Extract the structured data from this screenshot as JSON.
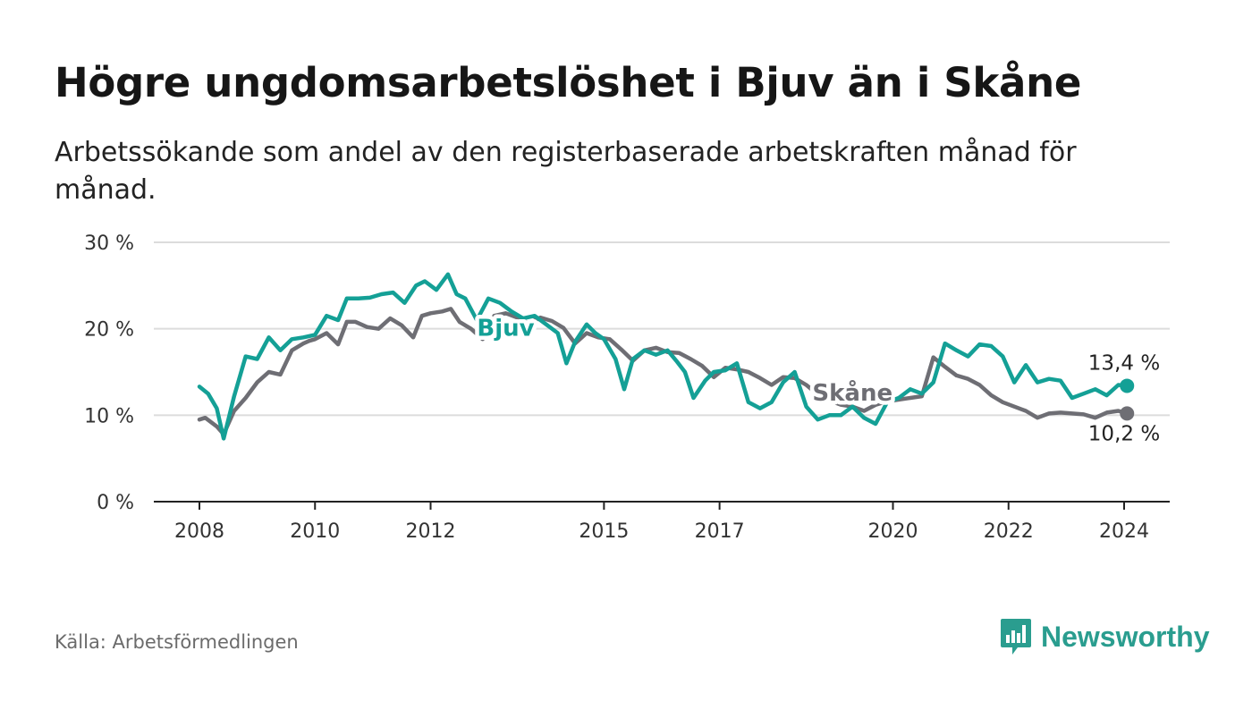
{
  "title": "Högre ungdomsarbetslöshet i Bjuv än i Skåne",
  "subtitle": "Arbetssökande som andel av den registerbaserade arbetskraften månad för månad.",
  "source": "Källa: Arbetsförmedlingen",
  "brand": {
    "name": "Newsworthy",
    "icon": "newsworthy-logo-icon"
  },
  "colors": {
    "bjuv": "#14a096",
    "skane": "#6e6e74",
    "grid": "#dcdcdc",
    "axis": "#222222"
  },
  "chart_data": {
    "type": "line",
    "title": "Högre ungdomsarbetslöshet i Bjuv än i Skåne",
    "xlabel": "",
    "ylabel": "",
    "ylim": [
      0,
      30
    ],
    "xlim": [
      2008.0,
      2024.0
    ],
    "yticks": [
      0,
      10,
      20,
      30
    ],
    "ytick_labels": [
      "0 %",
      "10 %",
      "20 %",
      "30 %"
    ],
    "xticks": [
      2008,
      2010,
      2012,
      2015,
      2017,
      2020,
      2022,
      2024
    ],
    "xtick_labels": [
      "2008",
      "2010",
      "2012",
      "2015",
      "2017",
      "2020",
      "2022",
      "2024"
    ],
    "series": [
      {
        "name": "Skåne",
        "label": "Skåne",
        "end_label": "10,2 %",
        "x": [
          2008.0,
          2008.1,
          2008.3,
          2008.42,
          2008.6,
          2008.8,
          2009.0,
          2009.2,
          2009.4,
          2009.6,
          2009.8,
          2009.9,
          2010.0,
          2010.2,
          2010.4,
          2010.55,
          2010.7,
          2010.9,
          2011.1,
          2011.3,
          2011.5,
          2011.7,
          2011.85,
          2012.0,
          2012.2,
          2012.35,
          2012.5,
          2012.7,
          2012.9,
          2013.1,
          2013.3,
          2013.5,
          2013.7,
          2013.9,
          2014.1,
          2014.3,
          2014.5,
          2014.7,
          2014.9,
          2015.1,
          2015.3,
          2015.5,
          2015.7,
          2015.9,
          2016.1,
          2016.3,
          2016.5,
          2016.7,
          2016.9,
          2017.1,
          2017.3,
          2017.5,
          2017.7,
          2017.9,
          2018.1,
          2018.3,
          2018.5,
          2018.7,
          2018.9,
          2019.1,
          2019.3,
          2019.5,
          2019.7,
          2019.9,
          2020.1,
          2020.3,
          2020.5,
          2020.7,
          2020.9,
          2021.1,
          2021.3,
          2021.5,
          2021.7,
          2021.9,
          2022.1,
          2022.3,
          2022.5,
          2022.7,
          2022.9,
          2023.1,
          2023.3,
          2023.5,
          2023.7,
          2023.9,
          2024.05
        ],
        "values": [
          9.5,
          9.7,
          8.7,
          7.8,
          10.5,
          12.0,
          13.8,
          15.0,
          14.7,
          17.5,
          18.3,
          18.6,
          18.8,
          19.5,
          18.2,
          20.8,
          20.8,
          20.2,
          20.0,
          21.2,
          20.4,
          19.0,
          21.5,
          21.8,
          22.0,
          22.3,
          20.8,
          20.0,
          18.8,
          21.5,
          21.8,
          21.3,
          20.6,
          21.3,
          20.9,
          20.1,
          18.3,
          19.5,
          19.0,
          18.8,
          17.6,
          16.3,
          17.5,
          17.8,
          17.3,
          17.2,
          16.5,
          15.7,
          14.4,
          15.5,
          15.3,
          15.0,
          14.3,
          13.5,
          14.4,
          14.3,
          13.5,
          12.4,
          11.7,
          11.2,
          11.0,
          10.5,
          11.2,
          11.6,
          11.8,
          12.0,
          12.2,
          16.7,
          15.6,
          14.6,
          14.2,
          13.5,
          12.3,
          11.5,
          11.0,
          10.5,
          9.7,
          10.2,
          10.3,
          10.2,
          10.1,
          9.7,
          10.3,
          10.5,
          10.2
        ]
      },
      {
        "name": "Bjuv",
        "label": "Bjuv",
        "end_label": "13,4 %",
        "x": [
          2008.0,
          2008.15,
          2008.3,
          2008.42,
          2008.6,
          2008.8,
          2009.0,
          2009.2,
          2009.4,
          2009.6,
          2009.8,
          2010.0,
          2010.2,
          2010.4,
          2010.55,
          2010.75,
          2010.95,
          2011.15,
          2011.35,
          2011.55,
          2011.75,
          2011.9,
          2012.1,
          2012.3,
          2012.45,
          2012.6,
          2012.8,
          2013.0,
          2013.2,
          2013.4,
          2013.6,
          2013.8,
          2014.0,
          2014.2,
          2014.35,
          2014.5,
          2014.7,
          2014.85,
          2015.0,
          2015.2,
          2015.35,
          2015.5,
          2015.7,
          2015.9,
          2016.1,
          2016.25,
          2016.4,
          2016.55,
          2016.75,
          2016.9,
          2017.1,
          2017.3,
          2017.5,
          2017.7,
          2017.9,
          2018.1,
          2018.3,
          2018.5,
          2018.7,
          2018.9,
          2019.1,
          2019.3,
          2019.5,
          2019.7,
          2019.9,
          2020.1,
          2020.3,
          2020.5,
          2020.7,
          2020.9,
          2021.1,
          2021.3,
          2021.5,
          2021.7,
          2021.9,
          2022.1,
          2022.3,
          2022.5,
          2022.7,
          2022.9,
          2023.1,
          2023.3,
          2023.5,
          2023.7,
          2023.9,
          2024.05
        ],
        "values": [
          13.3,
          12.5,
          10.8,
          7.3,
          12.2,
          16.8,
          16.5,
          19.0,
          17.5,
          18.8,
          19.0,
          19.3,
          21.5,
          21.0,
          23.5,
          23.5,
          23.6,
          24.0,
          24.2,
          23.0,
          25.0,
          25.5,
          24.5,
          26.3,
          24.0,
          23.5,
          21.0,
          23.5,
          23.0,
          22.0,
          21.2,
          21.5,
          20.5,
          19.5,
          16.0,
          18.5,
          20.5,
          19.5,
          18.8,
          16.5,
          13.0,
          16.5,
          17.5,
          17.0,
          17.5,
          16.3,
          15.0,
          12.0,
          14.0,
          15.0,
          15.2,
          16.0,
          11.5,
          10.8,
          11.5,
          13.8,
          15.0,
          11.0,
          9.5,
          10.0,
          10.0,
          11.0,
          9.7,
          9.0,
          11.5,
          12.0,
          13.0,
          12.5,
          13.8,
          18.3,
          17.5,
          16.8,
          18.2,
          18.0,
          16.8,
          13.8,
          15.8,
          13.8,
          14.2,
          14.0,
          12.0,
          12.5,
          13.0,
          12.3,
          13.5,
          13.4
        ]
      }
    ],
    "annotations": [
      {
        "text": "Bjuv",
        "series": "Bjuv",
        "at_x": 2013.3,
        "at_y": 20.0
      },
      {
        "text": "Skåne",
        "series": "Skåne",
        "at_x": 2019.3,
        "at_y": 12.5
      }
    ]
  }
}
